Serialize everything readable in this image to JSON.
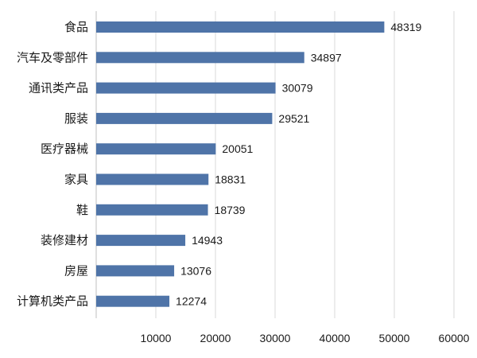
{
  "chart_data": {
    "type": "bar",
    "orientation": "horizontal",
    "categories": [
      "食品",
      "汽车及零部件",
      "通讯类产品",
      "服装",
      "医疗器械",
      "家具",
      "鞋",
      "装修建材",
      "房屋",
      "计算机类产品"
    ],
    "values": [
      48319,
      34897,
      30079,
      29521,
      20051,
      18831,
      18739,
      14943,
      13076,
      12274
    ],
    "value_labels": [
      "48319",
      "34897",
      "30079",
      "29521",
      "20051",
      "18831",
      "18739",
      "14943",
      "13076",
      "12274"
    ],
    "xlim": [
      0,
      60000
    ],
    "xticks": [
      10000,
      20000,
      30000,
      40000,
      50000,
      60000
    ],
    "xtick_labels": [
      "10000",
      "20000",
      "30000",
      "40000",
      "50000",
      "60000"
    ],
    "title": "",
    "xlabel": "",
    "ylabel": "",
    "grid": "vertical",
    "legend": "none",
    "colors": {
      "bar": "#4f74a8",
      "grid": "#d9d9d9",
      "text": "#1a1a1a"
    }
  }
}
